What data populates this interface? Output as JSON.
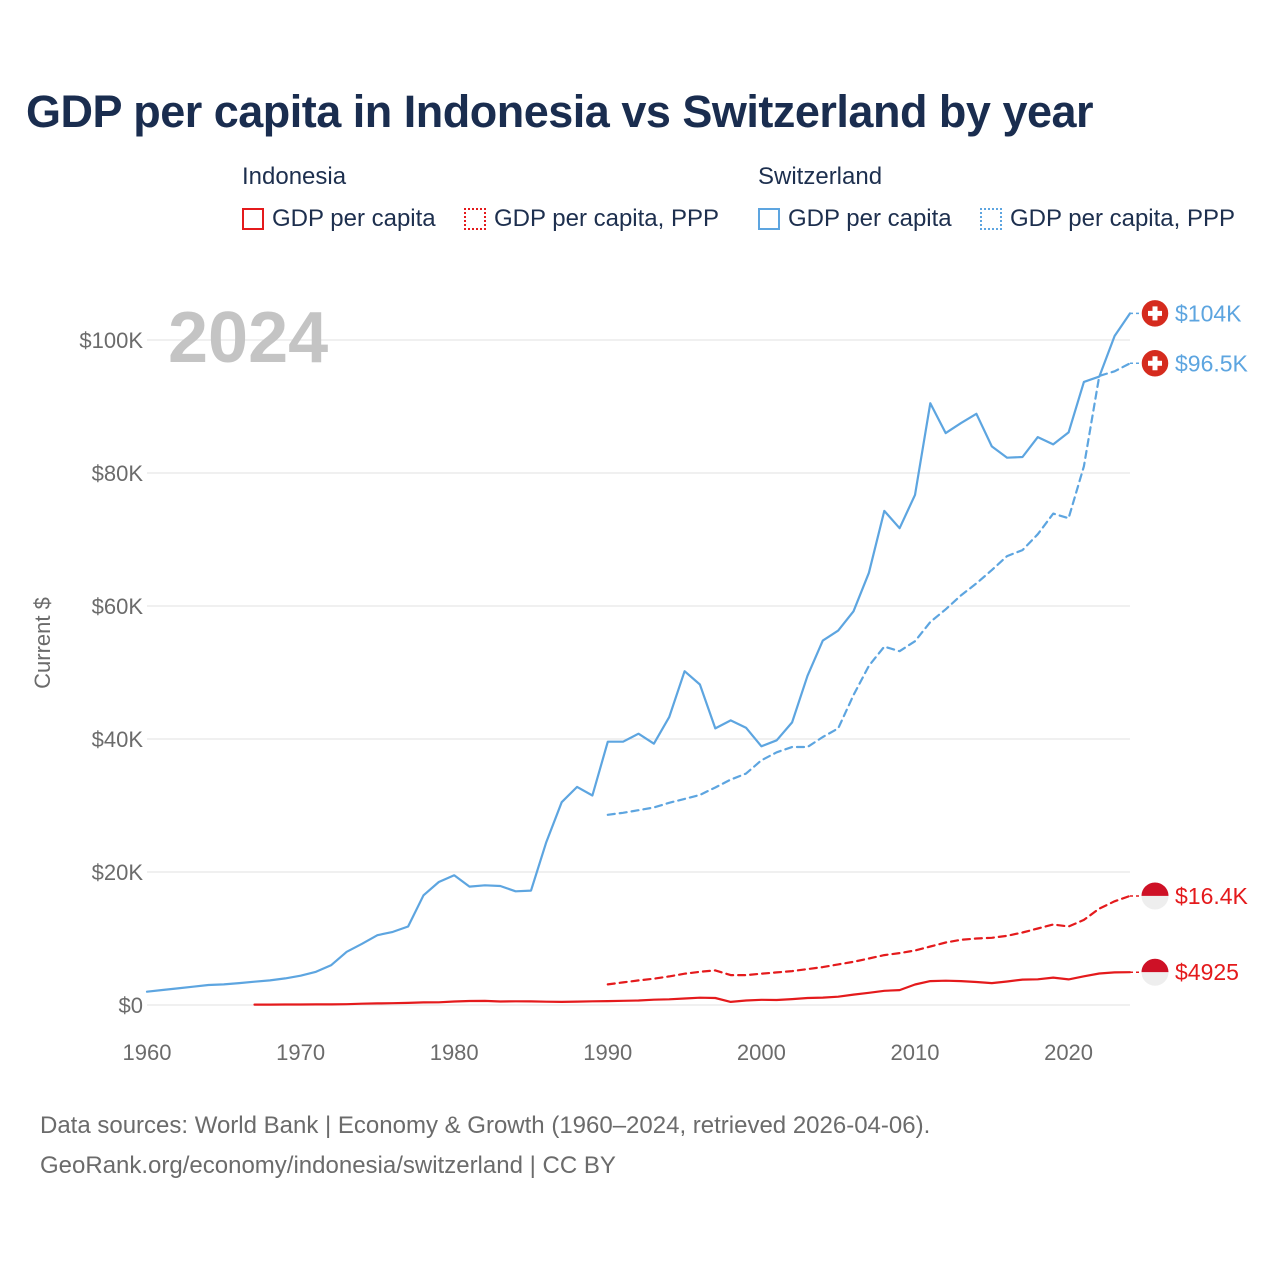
{
  "title": "GDP per capita in Indonesia vs Switzerland by year",
  "legend": {
    "groups": [
      {
        "name": "Indonesia",
        "color": "#e41a1c",
        "items": [
          {
            "label": "GDP per capita",
            "style": "solid"
          },
          {
            "label": "GDP per capita, PPP",
            "style": "dotted"
          }
        ]
      },
      {
        "name": "Switzerland",
        "color": "#5da5e0",
        "items": [
          {
            "label": "GDP per capita",
            "style": "solid"
          },
          {
            "label": "GDP per capita, PPP",
            "style": "dotted"
          }
        ]
      }
    ]
  },
  "footer": {
    "line1": "Data sources: World Bank | Economy & Growth (1960–2024, retrieved 2026-04-06).",
    "line2": "GeoRank.org/economy/indonesia/switzerland | CC BY"
  },
  "chart_data": {
    "type": "line",
    "year_label": "2024",
    "ylabel": "Current $",
    "xlabel": "",
    "xlim": [
      1960,
      2024
    ],
    "ylim": [
      0,
      105000
    ],
    "x_ticks": [
      1960,
      1970,
      1980,
      1990,
      2000,
      2010,
      2020
    ],
    "y_ticks": [
      0,
      20000,
      40000,
      60000,
      80000,
      100000
    ],
    "y_tick_labels": [
      "$0",
      "$20K",
      "$40K",
      "$60K",
      "$80K",
      "$100K"
    ],
    "series": [
      {
        "name": "Switzerland GDP per capita",
        "country": "Switzerland",
        "color": "#5da5e0",
        "dash": "solid",
        "end_label": "$104K",
        "x": [
          1960,
          1961,
          1962,
          1963,
          1964,
          1965,
          1966,
          1967,
          1968,
          1969,
          1970,
          1971,
          1972,
          1973,
          1974,
          1975,
          1976,
          1977,
          1978,
          1979,
          1980,
          1981,
          1982,
          1983,
          1984,
          1985,
          1986,
          1987,
          1988,
          1989,
          1990,
          1991,
          1992,
          1993,
          1994,
          1995,
          1996,
          1997,
          1998,
          1999,
          2000,
          2001,
          2002,
          2003,
          2004,
          2005,
          2006,
          2007,
          2008,
          2009,
          2010,
          2011,
          2012,
          2013,
          2014,
          2015,
          2016,
          2017,
          2018,
          2019,
          2020,
          2021,
          2022,
          2023,
          2024
        ],
        "values": [
          2000,
          2250,
          2500,
          2750,
          3000,
          3100,
          3300,
          3500,
          3700,
          4000,
          4400,
          5000,
          6000,
          8000,
          9200,
          10500,
          11000,
          11800,
          16500,
          18500,
          19500,
          17800,
          18000,
          17900,
          17100,
          17200,
          24500,
          30500,
          32800,
          31500,
          39600,
          39600,
          40800,
          39300,
          43300,
          50200,
          48200,
          41600,
          42800,
          41700,
          38900,
          39800,
          42500,
          49500,
          54800,
          56300,
          59200,
          65000,
          74300,
          71700,
          76700,
          90500,
          86000,
          87500,
          88900,
          84000,
          82300,
          82400,
          85400,
          84300,
          86100,
          93700,
          94500,
          100600,
          104000
        ]
      },
      {
        "name": "Switzerland GDP per capita, PPP",
        "country": "Switzerland",
        "color": "#5da5e0",
        "dash": "dashed",
        "end_label": "$96.5K",
        "x": [
          1990,
          1991,
          1992,
          1993,
          1994,
          1995,
          1996,
          1997,
          1998,
          1999,
          2000,
          2001,
          2002,
          2003,
          2004,
          2005,
          2006,
          2007,
          2008,
          2009,
          2010,
          2011,
          2012,
          2013,
          2014,
          2015,
          2016,
          2017,
          2018,
          2019,
          2020,
          2021,
          2022,
          2023,
          2024
        ],
        "values": [
          28600,
          28900,
          29300,
          29700,
          30400,
          31000,
          31600,
          32700,
          33900,
          34800,
          36800,
          38000,
          38800,
          38800,
          40300,
          41600,
          46600,
          51000,
          53900,
          53200,
          54700,
          57600,
          59500,
          61600,
          63400,
          65400,
          67500,
          68400,
          70800,
          73900,
          73200,
          81000,
          94600,
          95300,
          96500
        ]
      },
      {
        "name": "Indonesia GDP per capita, PPP",
        "country": "Indonesia",
        "color": "#e41a1c",
        "dash": "dashed",
        "end_label": "$16.4K",
        "x": [
          1990,
          1991,
          1992,
          1993,
          1994,
          1995,
          1996,
          1997,
          1998,
          1999,
          2000,
          2001,
          2002,
          2003,
          2004,
          2005,
          2006,
          2007,
          2008,
          2009,
          2010,
          2011,
          2012,
          2013,
          2014,
          2015,
          2016,
          2017,
          2018,
          2019,
          2020,
          2021,
          2022,
          2023,
          2024
        ],
        "values": [
          3100,
          3400,
          3700,
          3950,
          4300,
          4700,
          5000,
          5200,
          4500,
          4500,
          4700,
          4900,
          5100,
          5400,
          5700,
          6100,
          6500,
          7000,
          7500,
          7800,
          8200,
          8800,
          9400,
          9800,
          10000,
          10100,
          10400,
          10900,
          11500,
          12100,
          11800,
          12800,
          14500,
          15600,
          16400
        ]
      },
      {
        "name": "Indonesia GDP per capita",
        "country": "Indonesia",
        "color": "#e41a1c",
        "dash": "solid",
        "end_label": "$4925",
        "x": [
          1967,
          1968,
          1969,
          1970,
          1971,
          1972,
          1973,
          1974,
          1975,
          1976,
          1977,
          1978,
          1979,
          1980,
          1981,
          1982,
          1983,
          1984,
          1985,
          1986,
          1987,
          1988,
          1989,
          1990,
          1991,
          1992,
          1993,
          1994,
          1995,
          1996,
          1997,
          1998,
          1999,
          2000,
          2001,
          2002,
          2003,
          2004,
          2005,
          2006,
          2007,
          2008,
          2009,
          2010,
          2011,
          2012,
          2013,
          2014,
          2015,
          2016,
          2017,
          2018,
          2019,
          2020,
          2021,
          2022,
          2023,
          2024
        ],
        "values": [
          55,
          65,
          75,
          80,
          85,
          90,
          120,
          200,
          240,
          270,
          320,
          390,
          400,
          530,
          600,
          610,
          530,
          560,
          540,
          490,
          470,
          510,
          560,
          590,
          630,
          670,
          800,
          860,
          980,
          1100,
          1060,
          460,
          670,
          780,
          750,
          880,
          1050,
          1110,
          1250,
          1560,
          1840,
          2140,
          2240,
          3090,
          3600,
          3650,
          3600,
          3460,
          3300,
          3540,
          3820,
          3870,
          4120,
          3850,
          4320,
          4740,
          4900,
          4925
        ]
      }
    ]
  }
}
